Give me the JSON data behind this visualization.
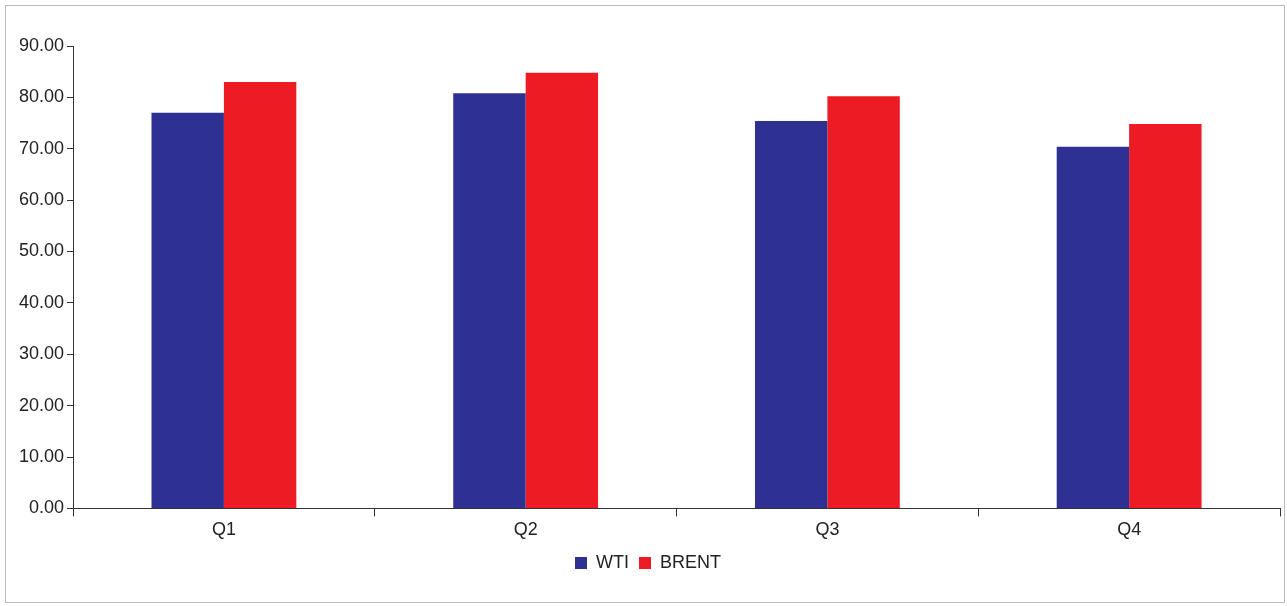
{
  "chart_data": {
    "type": "bar",
    "categories": [
      "Q1",
      "Q2",
      "Q3",
      "Q4"
    ],
    "series": [
      {
        "name": "WTI",
        "color": "#2e3192",
        "values": [
          77.0,
          80.8,
          75.4,
          70.4
        ]
      },
      {
        "name": "BRENT",
        "color": "#ed1c24",
        "values": [
          83.0,
          84.8,
          80.2,
          74.8
        ]
      }
    ],
    "ylim": [
      0,
      90
    ],
    "yticks": [
      {
        "value": 0,
        "label": "0.00"
      },
      {
        "value": 10,
        "label": "10.00"
      },
      {
        "value": 20,
        "label": "20.00"
      },
      {
        "value": 30,
        "label": "30.00"
      },
      {
        "value": 40,
        "label": "40.00"
      },
      {
        "value": 50,
        "label": "50.00"
      },
      {
        "value": 60,
        "label": "60.00"
      },
      {
        "value": 70,
        "label": "70.00"
      },
      {
        "value": 80,
        "label": "80.00"
      },
      {
        "value": 90,
        "label": "90.00"
      }
    ],
    "grid": false,
    "legend": "bottom"
  }
}
